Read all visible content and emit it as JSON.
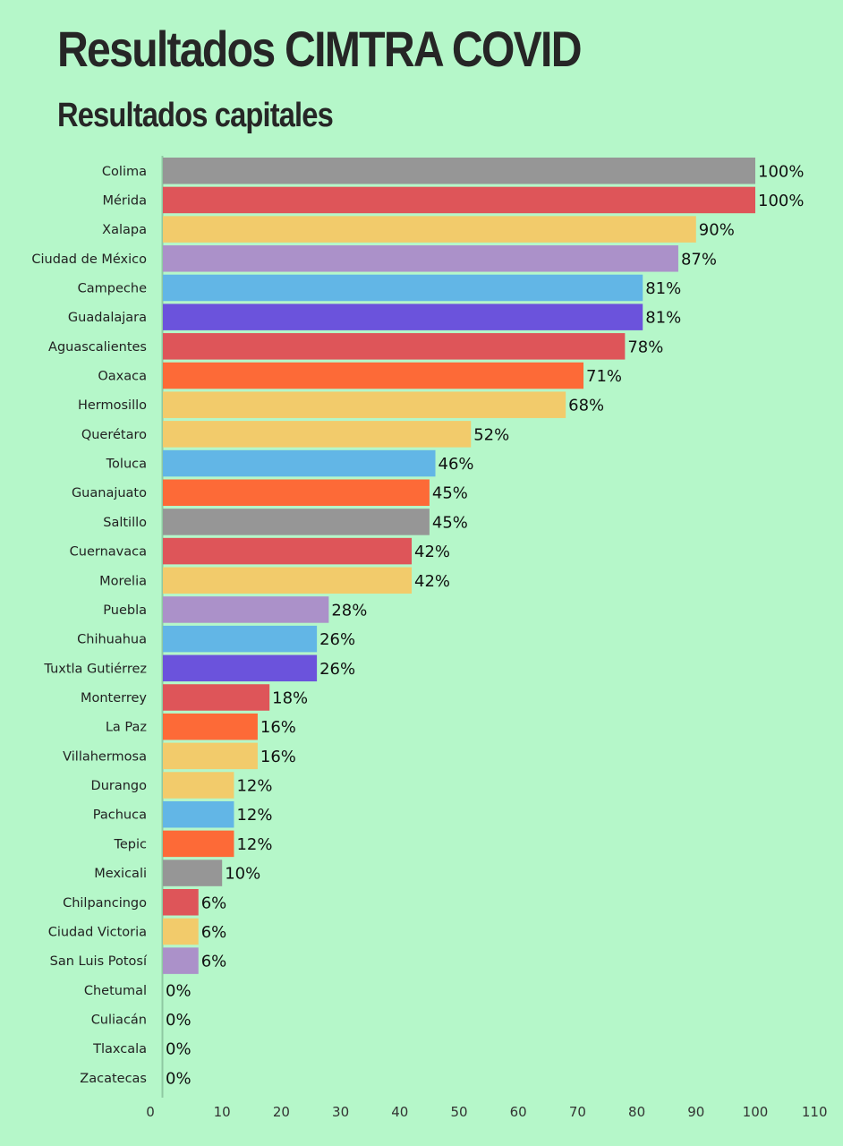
{
  "header": {
    "title": "Resultados CIMTRA COVID",
    "subtitle": "Resultados capitales"
  },
  "chart_data": {
    "type": "bar",
    "orientation": "horizontal",
    "title": "Resultados CIMTRA COVID",
    "subtitle": "Resultados capitales",
    "xlabel": "",
    "ylabel": "",
    "xlim": [
      0,
      110
    ],
    "x_ticks": [
      0,
      10,
      20,
      30,
      40,
      50,
      60,
      70,
      80,
      90,
      100,
      110
    ],
    "grid": false,
    "value_suffix": "%",
    "categories": [
      "Colima",
      "Mérida",
      "Xalapa",
      "Ciudad de México",
      "Campeche",
      "Guadalajara",
      "Aguascalientes",
      "Oaxaca",
      "Hermosillo",
      "Querétaro",
      "Toluca",
      "Guanajuato",
      "Saltillo",
      "Cuernavaca",
      "Morelia",
      "Puebla",
      "Chihuahua",
      "Tuxtla Gutiérrez",
      "Monterrey",
      "La Paz",
      "Villahermosa",
      "Durango",
      "Pachuca",
      "Tepic",
      "Mexicali",
      "Chilpancingo",
      "Ciudad Victoria",
      "San Luis Potosí",
      "Chetumal",
      "Culiacán",
      "Tlaxcala",
      "Zacatecas"
    ],
    "values": [
      100,
      100,
      90,
      87,
      81,
      81,
      78,
      71,
      68,
      52,
      46,
      45,
      45,
      42,
      42,
      28,
      26,
      26,
      18,
      16,
      16,
      12,
      12,
      12,
      10,
      6,
      6,
      6,
      0,
      0,
      0,
      0
    ],
    "colors": [
      "#969696",
      "#de5559",
      "#f2cb6b",
      "#ab91c9",
      "#62b6e6",
      "#6b53dc",
      "#de5559",
      "#fd6a37",
      "#f2cb6b",
      "#f2cb6b",
      "#62b6e6",
      "#fd6a37",
      "#969696",
      "#de5559",
      "#f2cb6b",
      "#ab91c9",
      "#62b6e6",
      "#6b53dc",
      "#de5559",
      "#fd6a37",
      "#f2cb6b",
      "#f2cb6b",
      "#62b6e6",
      "#fd6a37",
      "#969696",
      "#de5559",
      "#f2cb6b",
      "#ab91c9",
      "#969696",
      "#969696",
      "#969696",
      "#969696"
    ]
  }
}
